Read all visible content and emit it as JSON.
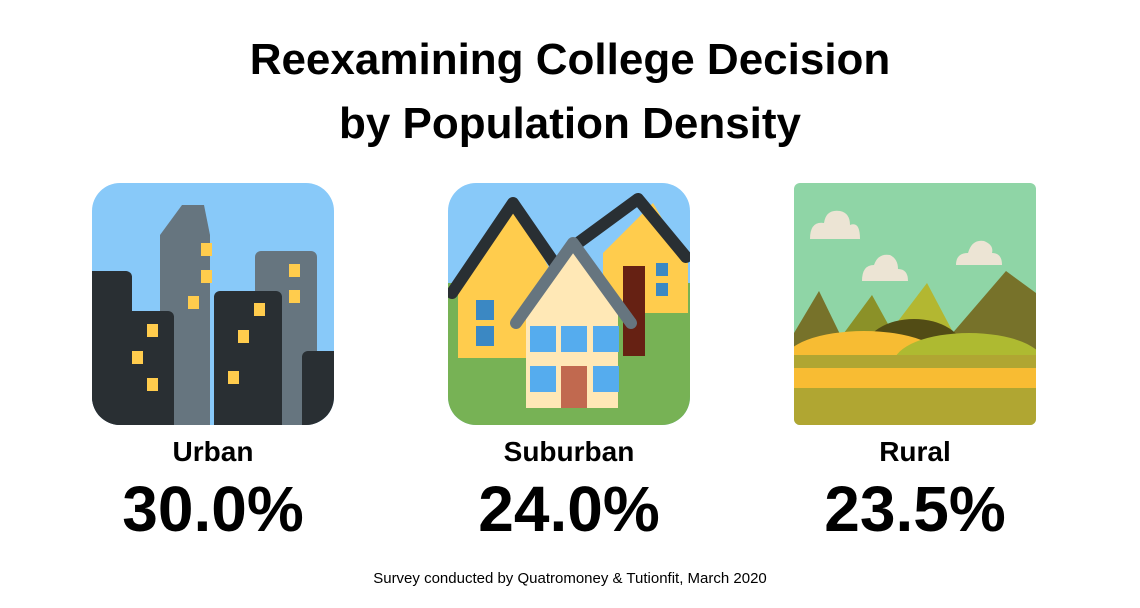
{
  "title_line1": "Reexamining College Decision",
  "title_line2": "by Population Density",
  "categories": [
    {
      "label": "Urban",
      "value": "30.0%",
      "icon": "city-icon"
    },
    {
      "label": "Suburban",
      "value": "24.0%",
      "icon": "houses-icon"
    },
    {
      "label": "Rural",
      "value": "23.5%",
      "icon": "countryside-icon"
    }
  ],
  "footer": "Survey conducted by Quatromoney & Tutionfit, March 2020",
  "colors": {
    "sky": "#88c9f9",
    "grass": "#77b255",
    "window": "#ffcc4d",
    "dark": "#292f33",
    "gray": "#66757f"
  }
}
